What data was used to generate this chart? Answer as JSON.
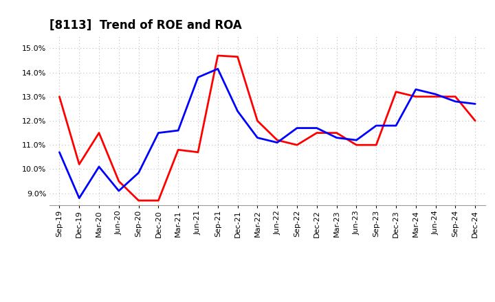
{
  "title": "[8113]  Trend of ROE and ROA",
  "x_labels": [
    "Sep-19",
    "Dec-19",
    "Mar-20",
    "Jun-20",
    "Sep-20",
    "Dec-20",
    "Mar-21",
    "Jun-21",
    "Sep-21",
    "Dec-21",
    "Mar-22",
    "Jun-22",
    "Sep-22",
    "Dec-22",
    "Mar-23",
    "Jun-23",
    "Sep-23",
    "Dec-23",
    "Mar-24",
    "Jun-24",
    "Sep-24",
    "Dec-24"
  ],
  "roe": [
    13.0,
    10.2,
    11.5,
    9.5,
    8.7,
    8.7,
    10.8,
    10.7,
    14.7,
    14.65,
    12.0,
    11.2,
    11.0,
    11.5,
    11.5,
    11.0,
    11.0,
    13.2,
    13.0,
    13.0,
    13.0,
    12.0
  ],
  "roa": [
    10.7,
    8.8,
    10.1,
    9.1,
    9.85,
    11.5,
    11.6,
    13.8,
    14.15,
    12.4,
    11.3,
    11.1,
    11.7,
    11.7,
    11.3,
    11.2,
    11.8,
    11.8,
    13.3,
    13.1,
    12.8,
    12.7
  ],
  "roe_color": "#FF0000",
  "roa_color": "#0000FF",
  "ylim": [
    8.5,
    15.5
  ],
  "yticks": [
    9.0,
    10.0,
    11.0,
    12.0,
    13.0,
    14.0,
    15.0
  ],
  "background_color": "#FFFFFF",
  "grid_color": "#BBBBBB",
  "title_fontsize": 12,
  "axis_fontsize": 8,
  "legend_fontsize": 9,
  "linewidth": 2.0
}
